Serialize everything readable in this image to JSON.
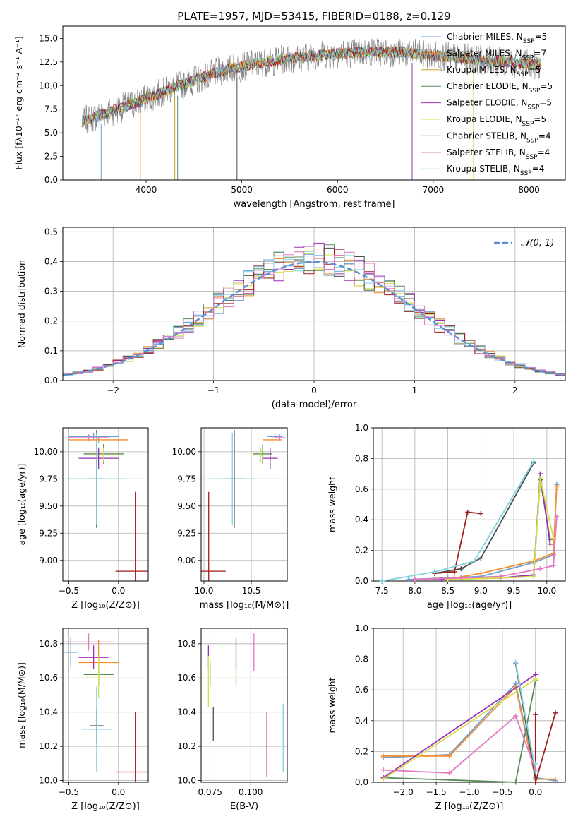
{
  "chart_data": [
    {
      "id": "spectrum",
      "type": "line",
      "title": "PLATE=1957, MJD=53415, FIBERID=0188, z=0.129",
      "xlabel": "wavelength [Angstrom, rest frame]",
      "ylabel": "Flux [fλ10⁻¹⁷ erg cm⁻² s⁻¹ A⁻¹]",
      "xlim": [
        3130,
        8380
      ],
      "ylim": [
        0,
        16.3
      ],
      "xticks": [
        4000,
        5000,
        6000,
        7000,
        8000
      ],
      "yticks": [
        0.0,
        2.5,
        5.0,
        7.5,
        10.0,
        12.5,
        15.0
      ],
      "ytick_labels": [
        "0.0",
        "2.5",
        "5.0",
        "7.5",
        "10.0",
        "12.5",
        "15.0"
      ],
      "data_range": [
        3330,
        8120
      ],
      "continuum": [
        [
          3330,
          6.2
        ],
        [
          3700,
          7.5
        ],
        [
          3900,
          8.2
        ],
        [
          4100,
          9.0
        ],
        [
          4400,
          10.2
        ],
        [
          4800,
          11.6
        ],
        [
          5200,
          12.4
        ],
        [
          5600,
          13.0
        ],
        [
          6000,
          13.4
        ],
        [
          6400,
          13.6
        ],
        [
          6800,
          13.4
        ],
        [
          7200,
          13.0
        ],
        [
          7600,
          12.6
        ],
        [
          8120,
          12.2
        ]
      ],
      "data_color": "#808080",
      "legend_position": "right",
      "legend": [
        {
          "imf": "Chabrier",
          "lib": "MILES",
          "n": "5",
          "color": "#6a9fd8"
        },
        {
          "imf": "Salpeter",
          "lib": "MILES",
          "n": "7",
          "color": "#f28e2b"
        },
        {
          "imf": "Kroupa",
          "lib": "MILES",
          "n": "5",
          "color": "#c9a227"
        },
        {
          "imf": "Chabrier",
          "lib": "ELODIE",
          "n": "5",
          "color": "#5b8a5b"
        },
        {
          "imf": "Salpeter",
          "lib": "ELODIE",
          "n": "5",
          "color": "#9b30b5"
        },
        {
          "imf": "Kroupa",
          "lib": "ELODIE",
          "n": "5",
          "color": "#d6e04a"
        },
        {
          "imf": "Chabrier",
          "lib": "STELIB",
          "n": "4",
          "color": "#4d4d4d"
        },
        {
          "imf": "Salpeter",
          "lib": "STELIB",
          "n": "4",
          "color": "#a31c1c"
        },
        {
          "imf": "Kroupa",
          "lib": "STELIB",
          "n": "4",
          "color": "#7fd3df"
        }
      ],
      "legend_prefix": "N",
      "legend_subscript": "SSP"
    },
    {
      "id": "residuals",
      "type": "line",
      "xlabel": "(data-model)/error",
      "ylabel": "Normed distribution",
      "xlim": [
        -2.5,
        2.5
      ],
      "ylim": [
        0,
        0.515
      ],
      "xticks": [
        -2,
        -1,
        0,
        1,
        2
      ],
      "xtick_labels": [
        "−2",
        "−1",
        "0",
        "1",
        "2"
      ],
      "yticks": [
        0.0,
        0.1,
        0.2,
        0.3,
        0.4,
        0.5
      ],
      "ytick_labels": [
        "0.0",
        "0.1",
        "0.2",
        "0.3",
        "0.4",
        "0.5"
      ],
      "grid": true,
      "legend_label": "𝒩(0, 1)",
      "gaussian_color": "#5b8fd6",
      "bin_width": 0.1,
      "hist_colors": [
        "#6a9fd8",
        "#f28e2b",
        "#5b8a5b",
        "#9b30b5",
        "#d6e04a",
        "#4d4d4d",
        "#a31c1c",
        "#7fd3df",
        "#e377c2"
      ]
    },
    {
      "id": "age_vs_Z",
      "type": "scatter",
      "xlabel": "Z [log₁₀(Z/Z⊙)]",
      "ylabel": "age  [log₁₀(age/yr)]",
      "xlim": [
        -0.56,
        0.3
      ],
      "ylim": [
        8.81,
        10.22
      ],
      "xticks": [
        -0.5,
        0.0
      ],
      "xtick_labels": [
        "−0.5",
        "0.0"
      ],
      "yticks": [
        9.0,
        9.25,
        9.5,
        9.75,
        10.0
      ],
      "ytick_labels": [
        "9.00",
        "9.25",
        "9.50",
        "9.75",
        "10.00"
      ],
      "grid": true,
      "points": [
        {
          "x": -0.25,
          "y": 10.14,
          "dx": 0.25,
          "dy": 0.03,
          "color": "#6a9fd8"
        },
        {
          "x": -0.2,
          "y": 10.11,
          "dx": 0.3,
          "dy": 0.03,
          "color": "#f28e2b"
        },
        {
          "x": -0.15,
          "y": 9.98,
          "dx": 0.2,
          "dy": 0.09,
          "color": "#5b8a5b"
        },
        {
          "x": -0.2,
          "y": 9.94,
          "dx": 0.2,
          "dy": 0.1,
          "color": "#9b30b5"
        },
        {
          "x": -0.15,
          "y": 9.97,
          "dx": 0.2,
          "dy": 0.07,
          "color": "#d6e04a"
        },
        {
          "x": -0.22,
          "y": 9.75,
          "dx": 0.07,
          "dy": 0.45,
          "color": "#4d4d4d"
        },
        {
          "x": 0.17,
          "y": 8.9,
          "dx": 0.2,
          "dy": 0.73,
          "color": "#a31c1c"
        },
        {
          "x": -0.22,
          "y": 9.75,
          "dx": 0.3,
          "dy": 0.42,
          "color": "#7fd3df"
        },
        {
          "x": -0.3,
          "y": 10.13,
          "dx": 0.2,
          "dy": 0.03,
          "color": "#e377c2"
        }
      ]
    },
    {
      "id": "age_vs_mass",
      "type": "scatter",
      "xlabel": "mass [log₁₀(M/M⊙)]",
      "ylabel": "",
      "xlim": [
        9.97,
        10.88
      ],
      "ylim": [
        8.81,
        10.22
      ],
      "xticks": [
        10.0,
        10.5
      ],
      "xtick_labels": [
        "10.0",
        "10.5"
      ],
      "yticks": [
        9.0,
        9.25,
        9.5,
        9.75,
        10.0
      ],
      "ytick_labels": [
        "9.00",
        "9.25",
        "9.50",
        "9.75",
        "10.00"
      ],
      "grid": true,
      "points": [
        {
          "x": 10.75,
          "y": 10.14,
          "dx": 0.08,
          "dy": 0.03,
          "color": "#6a9fd8"
        },
        {
          "x": 10.72,
          "y": 10.11,
          "dx": 0.1,
          "dy": 0.03,
          "color": "#f28e2b"
        },
        {
          "x": 10.62,
          "y": 9.98,
          "dx": 0.1,
          "dy": 0.09,
          "color": "#5b8a5b"
        },
        {
          "x": 10.7,
          "y": 9.94,
          "dx": 0.08,
          "dy": 0.1,
          "color": "#9b30b5"
        },
        {
          "x": 10.6,
          "y": 9.97,
          "dx": 0.1,
          "dy": 0.07,
          "color": "#d6e04a"
        },
        {
          "x": 10.32,
          "y": 9.75,
          "dx": 0.1,
          "dy": 0.45,
          "color": "#4d4d4d"
        },
        {
          "x": 10.05,
          "y": 8.9,
          "dx": 0.18,
          "dy": 0.73,
          "color": "#a31c1c"
        },
        {
          "x": 10.3,
          "y": 9.75,
          "dx": 0.25,
          "dy": 0.42,
          "color": "#7fd3df"
        },
        {
          "x": 10.8,
          "y": 10.13,
          "dx": 0.06,
          "dy": 0.03,
          "color": "#e377c2"
        }
      ]
    },
    {
      "id": "weight_vs_age",
      "type": "line",
      "xlabel": "age  [log₁₀(age/yr)]",
      "ylabel": "mass weight",
      "xlim": [
        7.37,
        10.28
      ],
      "ylim": [
        0,
        1.0
      ],
      "xticks": [
        7.5,
        8.0,
        8.5,
        9.0,
        9.5,
        10.0
      ],
      "xtick_labels": [
        "7.5",
        "8.0",
        "8.5",
        "9.0",
        "9.5",
        "10.0"
      ],
      "yticks": [
        0.0,
        0.2,
        0.4,
        0.6,
        0.8,
        1.0
      ],
      "ytick_labels": [
        "0.0",
        "0.2",
        "0.4",
        "0.6",
        "0.8",
        "1.0"
      ],
      "grid": true,
      "series": [
        {
          "color": "#6a9fd8",
          "points": [
            [
              7.9,
              0.01
            ],
            [
              8.5,
              0.02
            ],
            [
              9.0,
              0.03
            ],
            [
              9.8,
              0.12
            ],
            [
              10.1,
              0.17
            ],
            [
              10.15,
              0.63
            ]
          ]
        },
        {
          "color": "#f28e2b",
          "points": [
            [
              8.0,
              0.01
            ],
            [
              8.6,
              0.02
            ],
            [
              9.0,
              0.05
            ],
            [
              9.8,
              0.13
            ],
            [
              10.1,
              0.18
            ],
            [
              10.15,
              0.62
            ]
          ]
        },
        {
          "color": "#5b8a5b",
          "points": [
            [
              8.3,
              0.01
            ],
            [
              9.3,
              0.02
            ],
            [
              9.8,
              0.03
            ],
            [
              9.9,
              0.66
            ],
            [
              10.05,
              0.27
            ]
          ]
        },
        {
          "color": "#9b30b5",
          "points": [
            [
              8.4,
              0.01
            ],
            [
              9.3,
              0.02
            ],
            [
              9.8,
              0.04
            ],
            [
              9.9,
              0.7
            ],
            [
              10.05,
              0.24
            ]
          ]
        },
        {
          "color": "#d6e04a",
          "points": [
            [
              8.5,
              0.01
            ],
            [
              9.3,
              0.02
            ],
            [
              9.8,
              0.03
            ],
            [
              9.9,
              0.67
            ],
            [
              10.1,
              0.28
            ]
          ]
        },
        {
          "color": "#4d4d4d",
          "points": [
            [
              8.3,
              0.05
            ],
            [
              8.7,
              0.08
            ],
            [
              9.0,
              0.15
            ],
            [
              9.8,
              0.77
            ]
          ]
        },
        {
          "color": "#a31c1c",
          "points": [
            [
              8.3,
              0.05
            ],
            [
              8.6,
              0.06
            ],
            [
              8.8,
              0.45
            ],
            [
              9.0,
              0.44
            ]
          ]
        },
        {
          "color": "#7fd3df",
          "points": [
            [
              7.5,
              0.0
            ],
            [
              8.3,
              0.06
            ],
            [
              8.9,
              0.13
            ],
            [
              9.8,
              0.78
            ]
          ]
        },
        {
          "color": "#e377c2",
          "points": [
            [
              8.0,
              0.01
            ],
            [
              8.7,
              0.02
            ],
            [
              9.3,
              0.03
            ],
            [
              9.9,
              0.08
            ],
            [
              10.1,
              0.1
            ],
            [
              10.15,
              0.42
            ]
          ]
        }
      ]
    },
    {
      "id": "mass_vs_Z",
      "type": "scatter",
      "xlabel": "Z [log₁₀(Z/Z⊙)]",
      "ylabel": "mass [log₁₀(M/M⊙)]",
      "xlim": [
        -0.56,
        0.3
      ],
      "ylim": [
        9.99,
        10.89
      ],
      "xticks": [
        -0.5,
        0.0
      ],
      "xtick_labels": [
        "−0.5",
        "0.0"
      ],
      "yticks": [
        10.0,
        10.2,
        10.4,
        10.6,
        10.8
      ],
      "ytick_labels": [
        "10.0",
        "10.2",
        "10.4",
        "10.6",
        "10.8"
      ],
      "grid": true,
      "points": [
        {
          "x": -0.48,
          "y": 10.75,
          "dx": 0.07,
          "dy": 0.09,
          "color": "#6a9fd8"
        },
        {
          "x": -0.2,
          "y": 10.69,
          "dx": 0.2,
          "dy": 0.13,
          "color": "#f28e2b"
        },
        {
          "x": -0.2,
          "y": 10.62,
          "dx": 0.15,
          "dy": 0.07,
          "color": "#5b8a5b"
        },
        {
          "x": -0.25,
          "y": 10.72,
          "dx": 0.15,
          "dy": 0.07,
          "color": "#9b30b5"
        },
        {
          "x": -0.2,
          "y": 10.6,
          "dx": 0.15,
          "dy": 0.12,
          "color": "#d6e04a"
        },
        {
          "x": -0.22,
          "y": 10.32,
          "dx": 0.07,
          "dy": 0.1,
          "color": "#4d4d4d"
        },
        {
          "x": 0.17,
          "y": 10.05,
          "dx": 0.2,
          "dy": 0.35,
          "color": "#a31c1c"
        },
        {
          "x": -0.22,
          "y": 10.3,
          "dx": 0.15,
          "dy": 0.25,
          "color": "#7fd3df"
        },
        {
          "x": -0.3,
          "y": 10.81,
          "dx": 0.25,
          "dy": 0.05,
          "color": "#e377c2"
        }
      ]
    },
    {
      "id": "mass_vs_ebv",
      "type": "scatter",
      "xlabel": "E(B-V)",
      "ylabel": "",
      "xlim": [
        0.0695,
        0.1225
      ],
      "ylim": [
        9.99,
        10.89
      ],
      "xticks": [
        0.075,
        0.1
      ],
      "xtick_labels": [
        "0.075",
        "0.100"
      ],
      "yticks": [
        10.0,
        10.2,
        10.4,
        10.6,
        10.8
      ],
      "ytick_labels": [
        "10.0",
        "10.2",
        "10.4",
        "10.6",
        "10.8"
      ],
      "grid": true,
      "points": [
        {
          "x": 0.091,
          "y": 10.75,
          "dx": 0.0,
          "dy": 0.09,
          "color": "#6a9fd8"
        },
        {
          "x": 0.091,
          "y": 10.69,
          "dx": 0.0,
          "dy": 0.14,
          "color": "#f28e2b"
        },
        {
          "x": 0.075,
          "y": 10.62,
          "dx": 0.0,
          "dy": 0.07,
          "color": "#5b8a5b"
        },
        {
          "x": 0.074,
          "y": 10.72,
          "dx": 0.0,
          "dy": 0.07,
          "color": "#9b30b5"
        },
        {
          "x": 0.074,
          "y": 10.58,
          "dx": 0.0,
          "dy": 0.15,
          "color": "#d6e04a"
        },
        {
          "x": 0.077,
          "y": 10.33,
          "dx": 0.0,
          "dy": 0.1,
          "color": "#4d4d4d"
        },
        {
          "x": 0.11,
          "y": 10.21,
          "dx": 0.0,
          "dy": 0.19,
          "color": "#a31c1c"
        },
        {
          "x": 0.12,
          "y": 10.25,
          "dx": 0.0,
          "dy": 0.2,
          "color": "#7fd3df"
        },
        {
          "x": 0.102,
          "y": 10.75,
          "dx": 0.0,
          "dy": 0.11,
          "color": "#e377c2"
        }
      ]
    },
    {
      "id": "weight_vs_Z",
      "type": "line",
      "xlabel": "Z [log₁₀(Z/Z⊙)]",
      "ylabel": "mass weight",
      "xlim": [
        -2.45,
        0.45
      ],
      "ylim": [
        0,
        1.0
      ],
      "xticks": [
        -2.0,
        -1.5,
        -1.0,
        -0.5,
        0.0
      ],
      "xtick_labels": [
        "−2.0",
        "−1.5",
        "−1.0",
        "−0.5",
        "0.0"
      ],
      "yticks": [
        0.0,
        0.2,
        0.4,
        0.6,
        0.8,
        1.0
      ],
      "ytick_labels": [
        "0.0",
        "0.2",
        "0.4",
        "0.6",
        "0.8",
        "1.0"
      ],
      "grid": true,
      "series": [
        {
          "color": "#6a9fd8",
          "points": [
            [
              -2.3,
              0.16
            ],
            [
              -1.3,
              0.18
            ],
            [
              -0.3,
              0.64
            ],
            [
              0.0,
              0.03
            ],
            [
              0.3,
              0.01
            ]
          ]
        },
        {
          "color": "#f28e2b",
          "points": [
            [
              -2.3,
              0.17
            ],
            [
              -1.3,
              0.17
            ],
            [
              -0.3,
              0.62
            ],
            [
              0.0,
              0.02
            ],
            [
              0.3,
              0.02
            ]
          ]
        },
        {
          "color": "#5b8a5b",
          "points": [
            [
              -2.3,
              0.03
            ],
            [
              -0.3,
              0.0
            ],
            [
              0.0,
              0.66
            ]
          ]
        },
        {
          "color": "#9b30b5",
          "points": [
            [
              -2.3,
              0.03
            ],
            [
              0.0,
              0.7
            ]
          ]
        },
        {
          "color": "#d6e04a",
          "points": [
            [
              -2.3,
              0.02
            ],
            [
              0.0,
              0.67
            ]
          ]
        },
        {
          "color": "#4d4d4d",
          "points": [
            [
              -0.3,
              0.77
            ],
            [
              0.0,
              0.02
            ]
          ]
        },
        {
          "color": "#a31c1c",
          "points": [
            [
              0.0,
              0.44
            ],
            [
              0.0,
              0.0
            ],
            [
              0.3,
              0.45
            ]
          ]
        },
        {
          "color": "#7fd3df",
          "points": [
            [
              -0.3,
              0.78
            ],
            [
              0.0,
              0.07
            ],
            [
              0.0,
              0.12
            ]
          ]
        },
        {
          "color": "#e377c2",
          "points": [
            [
              -2.3,
              0.08
            ],
            [
              -1.3,
              0.06
            ],
            [
              -0.3,
              0.43
            ],
            [
              0.0,
              0.08
            ]
          ]
        }
      ]
    }
  ]
}
